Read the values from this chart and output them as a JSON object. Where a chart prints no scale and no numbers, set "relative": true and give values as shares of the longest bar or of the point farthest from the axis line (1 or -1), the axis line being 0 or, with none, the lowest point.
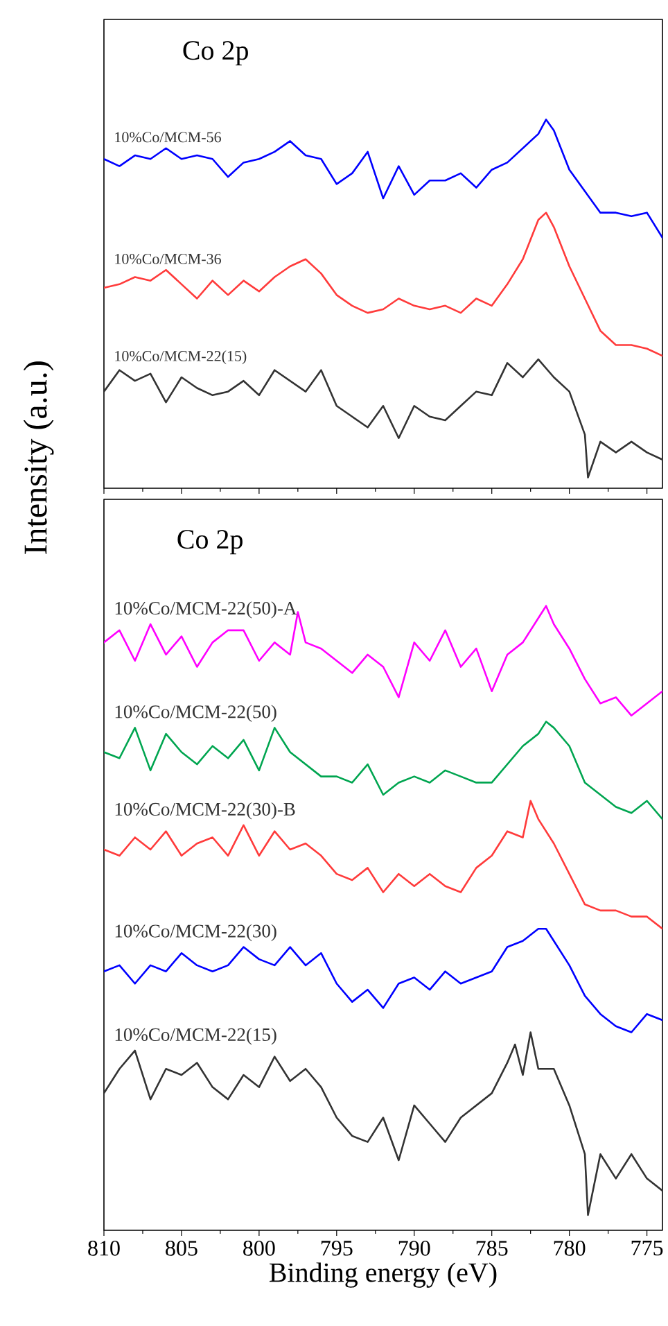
{
  "chart_data": [
    {
      "type": "line",
      "title": "Co 2p",
      "relative": true,
      "xlim": [
        810,
        774
      ],
      "xticks": [
        810,
        805,
        800,
        795,
        790,
        785,
        780,
        775
      ],
      "tick_labels": false,
      "series": [
        {
          "name": "10%Co/MCM-56",
          "color": "#0000ff",
          "x": [
            810,
            809,
            808,
            807,
            806,
            805,
            804,
            803,
            802,
            801,
            800,
            799,
            798,
            797,
            796,
            795,
            794,
            793,
            792,
            791,
            790,
            789,
            788,
            787,
            786,
            785,
            784,
            783,
            782,
            781.5,
            781,
            780,
            779,
            778,
            777,
            776,
            775,
            774
          ],
          "values": [
            0.89,
            0.87,
            0.9,
            0.89,
            0.92,
            0.89,
            0.9,
            0.89,
            0.84,
            0.88,
            0.89,
            0.91,
            0.94,
            0.9,
            0.89,
            0.82,
            0.85,
            0.91,
            0.78,
            0.87,
            0.79,
            0.83,
            0.83,
            0.85,
            0.81,
            0.86,
            0.88,
            0.92,
            0.96,
            1.0,
            0.97,
            0.86,
            0.8,
            0.74,
            0.74,
            0.73,
            0.74,
            0.67
          ]
        },
        {
          "name": "10%Co/MCM-36",
          "color": "#ff3b3b",
          "x": [
            810,
            809,
            808,
            807,
            806,
            805,
            804,
            803,
            802,
            801,
            800,
            799,
            798,
            797,
            796,
            795,
            794,
            793,
            792,
            791,
            790,
            789,
            788,
            787,
            786,
            785,
            784,
            783,
            782,
            781.5,
            781,
            780,
            779,
            778,
            777,
            776,
            775,
            774
          ],
          "values": [
            0.53,
            0.54,
            0.56,
            0.55,
            0.58,
            0.54,
            0.5,
            0.55,
            0.51,
            0.55,
            0.52,
            0.56,
            0.59,
            0.61,
            0.57,
            0.51,
            0.48,
            0.46,
            0.47,
            0.5,
            0.48,
            0.47,
            0.48,
            0.46,
            0.5,
            0.48,
            0.54,
            0.61,
            0.72,
            0.74,
            0.7,
            0.59,
            0.5,
            0.41,
            0.37,
            0.37,
            0.36,
            0.34
          ]
        },
        {
          "name": "10%Co/MCM-22(15)",
          "color": "#333333",
          "x": [
            810,
            809,
            808,
            807,
            806,
            805,
            804,
            803,
            802,
            801,
            800,
            799,
            798,
            797,
            796,
            795,
            794,
            793,
            792,
            791,
            790,
            789,
            788,
            787,
            786,
            785,
            784,
            783,
            782,
            781,
            780,
            779,
            778.8,
            778,
            777,
            776,
            775,
            774
          ],
          "values": [
            0.24,
            0.3,
            0.27,
            0.29,
            0.21,
            0.28,
            0.25,
            0.23,
            0.24,
            0.27,
            0.23,
            0.3,
            0.27,
            0.24,
            0.3,
            0.2,
            0.17,
            0.14,
            0.2,
            0.11,
            0.2,
            0.17,
            0.16,
            0.2,
            0.24,
            0.23,
            0.32,
            0.28,
            0.33,
            0.28,
            0.24,
            0.12,
            0.0,
            0.1,
            0.07,
            0.1,
            0.07,
            0.05
          ]
        }
      ]
    },
    {
      "type": "line",
      "title": "Co 2p",
      "xlabel": "Binding energy (eV)",
      "ylabel": "Intensity (a.u.)",
      "relative": true,
      "xlim": [
        810,
        774
      ],
      "xticks": [
        810,
        805,
        800,
        795,
        790,
        785,
        780,
        775
      ],
      "tick_labels": "x",
      "series": [
        {
          "name": "10%Co/MCM-22(50)-A",
          "color": "#ff00ff",
          "x": [
            810,
            809,
            808,
            807,
            806,
            805,
            804,
            803,
            802,
            801,
            800,
            799,
            798,
            797.5,
            797,
            796,
            795,
            794,
            793,
            792,
            791,
            790,
            789,
            788,
            787,
            786,
            785,
            784,
            783,
            782,
            781.5,
            781,
            780,
            779,
            778,
            777,
            776,
            775,
            774
          ],
          "values": [
            0.94,
            0.96,
            0.91,
            0.97,
            0.92,
            0.95,
            0.9,
            0.94,
            0.96,
            0.96,
            0.91,
            0.94,
            0.92,
            0.99,
            0.94,
            0.93,
            0.91,
            0.89,
            0.92,
            0.9,
            0.85,
            0.94,
            0.91,
            0.96,
            0.9,
            0.93,
            0.86,
            0.92,
            0.94,
            0.98,
            1.0,
            0.97,
            0.93,
            0.88,
            0.84,
            0.85,
            0.82,
            0.84,
            0.86
          ]
        },
        {
          "name": "10%Co/MCM-22(50)",
          "color": "#00a550",
          "x": [
            810,
            809,
            808,
            807,
            806,
            805,
            804,
            803,
            802,
            801,
            800,
            799,
            798,
            797,
            796,
            795,
            794,
            793,
            792,
            791,
            790,
            789,
            788,
            787,
            786,
            785,
            784,
            783,
            782,
            781.5,
            781,
            780,
            779,
            778,
            777,
            776,
            775,
            774
          ],
          "values": [
            0.76,
            0.75,
            0.8,
            0.73,
            0.79,
            0.76,
            0.74,
            0.77,
            0.75,
            0.78,
            0.73,
            0.8,
            0.76,
            0.74,
            0.72,
            0.72,
            0.71,
            0.74,
            0.69,
            0.71,
            0.72,
            0.71,
            0.73,
            0.72,
            0.71,
            0.71,
            0.74,
            0.77,
            0.79,
            0.81,
            0.8,
            0.77,
            0.71,
            0.69,
            0.67,
            0.66,
            0.68,
            0.65
          ]
        },
        {
          "name": "10%Co/MCM-22(30)-B",
          "color": "#ff3b3b",
          "x": [
            810,
            809,
            808,
            807,
            806,
            805,
            804,
            803,
            802,
            801,
            800,
            799,
            798,
            797,
            796,
            795,
            794,
            793,
            792,
            791,
            790,
            789,
            788,
            787,
            786,
            785,
            784,
            783,
            782.5,
            782,
            781,
            780,
            779,
            778,
            777,
            776,
            775,
            774
          ],
          "values": [
            0.6,
            0.59,
            0.62,
            0.6,
            0.63,
            0.59,
            0.61,
            0.62,
            0.59,
            0.64,
            0.59,
            0.63,
            0.6,
            0.61,
            0.59,
            0.56,
            0.55,
            0.57,
            0.53,
            0.56,
            0.54,
            0.56,
            0.54,
            0.53,
            0.57,
            0.59,
            0.63,
            0.62,
            0.68,
            0.65,
            0.61,
            0.56,
            0.51,
            0.5,
            0.5,
            0.49,
            0.49,
            0.47
          ]
        },
        {
          "name": "10%Co/MCM-22(30)",
          "color": "#0000ff",
          "x": [
            810,
            809,
            808,
            807,
            806,
            805,
            804,
            803,
            802,
            801,
            800,
            799,
            798,
            797,
            796,
            795,
            794,
            793,
            792,
            791,
            790,
            789,
            788,
            787,
            786,
            785,
            784,
            783,
            782,
            781.5,
            781,
            780,
            779,
            778,
            777,
            776,
            775,
            774
          ],
          "values": [
            0.4,
            0.41,
            0.38,
            0.41,
            0.4,
            0.43,
            0.41,
            0.4,
            0.41,
            0.44,
            0.42,
            0.41,
            0.44,
            0.41,
            0.43,
            0.38,
            0.35,
            0.37,
            0.34,
            0.38,
            0.39,
            0.37,
            0.4,
            0.38,
            0.39,
            0.4,
            0.44,
            0.45,
            0.47,
            0.47,
            0.45,
            0.41,
            0.36,
            0.33,
            0.31,
            0.3,
            0.33,
            0.32
          ]
        },
        {
          "name": "10%Co/MCM-22(15)",
          "color": "#333333",
          "x": [
            810,
            809,
            808,
            807,
            806,
            805,
            804,
            803,
            802,
            801,
            800,
            799,
            798,
            797,
            796,
            795,
            794,
            793,
            792,
            791,
            790,
            789,
            788,
            787,
            786,
            785,
            784,
            783.5,
            783,
            782.5,
            782,
            781,
            780,
            779,
            778.8,
            778,
            777,
            776,
            775,
            774
          ],
          "values": [
            0.2,
            0.24,
            0.27,
            0.19,
            0.24,
            0.23,
            0.25,
            0.21,
            0.19,
            0.23,
            0.21,
            0.26,
            0.22,
            0.24,
            0.21,
            0.16,
            0.13,
            0.12,
            0.16,
            0.09,
            0.18,
            0.15,
            0.12,
            0.16,
            0.18,
            0.2,
            0.25,
            0.28,
            0.23,
            0.3,
            0.24,
            0.24,
            0.18,
            0.1,
            0.0,
            0.1,
            0.06,
            0.1,
            0.06,
            0.04
          ]
        }
      ]
    }
  ]
}
